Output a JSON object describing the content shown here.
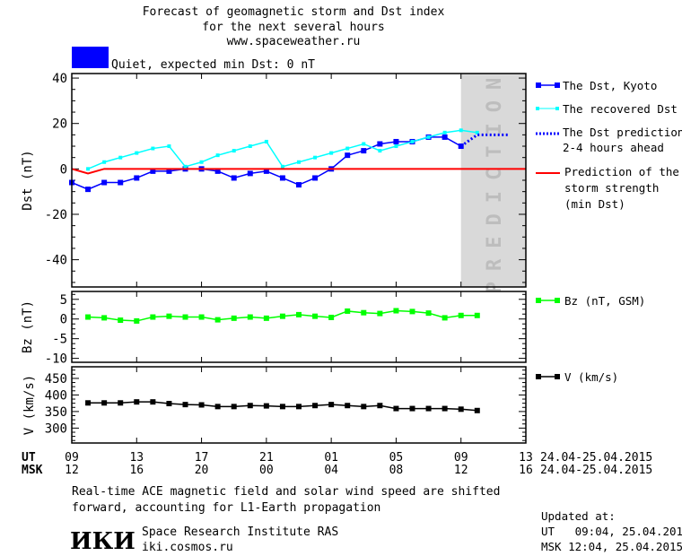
{
  "header": {
    "title_line1": "Forecast of geomagnetic storm and Dst index",
    "title_line2": "for the next several hours",
    "site": "www.spaceweather.ru",
    "status_text": "Quiet, expected min Dst: 0 nT",
    "status_color": "#0000ff"
  },
  "x_axis": {
    "xlim_ut": [
      "24.04 09:00",
      "25.04 13:00"
    ],
    "ut_label": "UT",
    "msk_label": "MSK",
    "ticks_ut_at": [
      "24.04 09:00",
      "24.04 13:00",
      "24.04 17:00",
      "24.04 21:00",
      "25.04 01:00",
      "25.04 05:00",
      "25.04 09:00",
      "25.04 13:00"
    ],
    "ut_ticks": [
      "09",
      "13",
      "17",
      "21",
      "01",
      "05",
      "09",
      "13"
    ],
    "msk_ticks": [
      "12",
      "16",
      "20",
      "00",
      "04",
      "08",
      "12",
      "16"
    ],
    "ut_range": "24.04-25.04.2015",
    "msk_range": "24.04-25.04.2015"
  },
  "chart_data": [
    {
      "type": "line",
      "ylabel": "Dst (nT)",
      "ylim": [
        -52,
        42
      ],
      "yticks": [
        -40,
        -20,
        0,
        20,
        40
      ],
      "prediction_zone": {
        "label": "PREDICTION",
        "from": "25.04 09:00",
        "to": "25.04 13:00",
        "color": "#d9d9d9"
      },
      "series": [
        {
          "name": "The Dst, Kyoto",
          "color": "#0000ff",
          "marker": "square",
          "points": [
            [
              "24.04 09:00",
              -6
            ],
            [
              "24.04 10:00",
              -9
            ],
            [
              "24.04 11:00",
              -6
            ],
            [
              "24.04 12:00",
              -6
            ],
            [
              "24.04 13:00",
              -4
            ],
            [
              "24.04 14:00",
              -1
            ],
            [
              "24.04 15:00",
              -1
            ],
            [
              "24.04 16:00",
              0
            ],
            [
              "24.04 17:00",
              0
            ],
            [
              "24.04 18:00",
              -1
            ],
            [
              "24.04 19:00",
              -4
            ],
            [
              "24.04 20:00",
              -2
            ],
            [
              "24.04 21:00",
              -1
            ],
            [
              "24.04 22:00",
              -4
            ],
            [
              "24.04 23:00",
              -7
            ],
            [
              "25.04 00:00",
              -4
            ],
            [
              "25.04 01:00",
              0
            ],
            [
              "25.04 02:00",
              6
            ],
            [
              "25.04 03:00",
              8
            ],
            [
              "25.04 04:00",
              11
            ],
            [
              "25.04 05:00",
              12
            ],
            [
              "25.04 06:00",
              12
            ],
            [
              "25.04 07:00",
              14
            ],
            [
              "25.04 08:00",
              14
            ],
            [
              "25.04 09:00",
              10
            ]
          ]
        },
        {
          "name": "The recovered Dst",
          "color": "#00ffff",
          "marker": "small-square",
          "points": [
            [
              "24.04 10:00",
              0
            ],
            [
              "24.04 11:00",
              3
            ],
            [
              "24.04 12:00",
              5
            ],
            [
              "24.04 13:00",
              7
            ],
            [
              "24.04 14:00",
              9
            ],
            [
              "24.04 15:00",
              10
            ],
            [
              "24.04 16:00",
              1
            ],
            [
              "24.04 17:00",
              3
            ],
            [
              "24.04 18:00",
              6
            ],
            [
              "24.04 19:00",
              8
            ],
            [
              "24.04 20:00",
              10
            ],
            [
              "24.04 21:00",
              12
            ],
            [
              "24.04 22:00",
              1
            ],
            [
              "24.04 23:00",
              3
            ],
            [
              "25.04 00:00",
              5
            ],
            [
              "25.04 01:00",
              7
            ],
            [
              "25.04 02:00",
              9
            ],
            [
              "25.04 03:00",
              11
            ],
            [
              "25.04 04:00",
              8
            ],
            [
              "25.04 05:00",
              10
            ],
            [
              "25.04 06:00",
              12
            ],
            [
              "25.04 07:00",
              14
            ],
            [
              "25.04 08:00",
              16
            ],
            [
              "25.04 09:00",
              17
            ],
            [
              "25.04 10:00",
              16
            ]
          ]
        },
        {
          "name": "The Dst prediction 2-4 hours ahead",
          "name_line1": "The Dst prediction",
          "name_line2": "2-4 hours ahead",
          "color": "#0000ff",
          "style": "dotted",
          "points": [
            [
              "25.04 09:00",
              10
            ],
            [
              "25.04 10:00",
              15
            ],
            [
              "25.04 12:00",
              15
            ]
          ]
        },
        {
          "name": "Prediction of the storm strength (min Dst)",
          "name_line1": "Prediction of the",
          "name_line2": "storm strength",
          "name_line3": "(min Dst)",
          "color": "#ff0000",
          "style": "solid",
          "points": [
            [
              "24.04 09:00",
              0
            ],
            [
              "24.04 10:00",
              -2
            ],
            [
              "24.04 11:00",
              0
            ],
            [
              "25.04 13:00",
              0
            ]
          ]
        }
      ]
    },
    {
      "type": "line",
      "ylabel": "Bz (nT)",
      "ylim": [
        -11,
        7
      ],
      "yticks": [
        -10,
        -5,
        0,
        5
      ],
      "series": [
        {
          "name": "Bz (nT, GSM)",
          "color": "#00ff00",
          "marker": "square",
          "points": [
            [
              "24.04 10:00",
              0.5
            ],
            [
              "24.04 11:00",
              0.3
            ],
            [
              "24.04 12:00",
              -0.3
            ],
            [
              "24.04 13:00",
              -0.5
            ],
            [
              "24.04 14:00",
              0.5
            ],
            [
              "24.04 15:00",
              0.7
            ],
            [
              "24.04 16:00",
              0.5
            ],
            [
              "24.04 17:00",
              0.5
            ],
            [
              "24.04 18:00",
              -0.2
            ],
            [
              "24.04 19:00",
              0.2
            ],
            [
              "24.04 20:00",
              0.5
            ],
            [
              "24.04 21:00",
              0.2
            ],
            [
              "24.04 22:00",
              0.7
            ],
            [
              "24.04 23:00",
              1.1
            ],
            [
              "25.04 00:00",
              0.7
            ],
            [
              "25.04 01:00",
              0.4
            ],
            [
              "25.04 02:00",
              2.0
            ],
            [
              "25.04 03:00",
              1.6
            ],
            [
              "25.04 04:00",
              1.4
            ],
            [
              "25.04 05:00",
              2.1
            ],
            [
              "25.04 06:00",
              1.9
            ],
            [
              "25.04 07:00",
              1.5
            ],
            [
              "25.04 08:00",
              0.3
            ],
            [
              "25.04 09:00",
              0.9
            ],
            [
              "25.04 10:00",
              0.9
            ]
          ]
        }
      ]
    },
    {
      "type": "line",
      "ylabel": "V (km/s)",
      "ylim": [
        255,
        485
      ],
      "yticks": [
        300,
        350,
        400,
        450
      ],
      "series": [
        {
          "name": "V (km/s)",
          "color": "#000000",
          "marker": "square",
          "points": [
            [
              "24.04 10:00",
              376
            ],
            [
              "24.04 11:00",
              376
            ],
            [
              "24.04 12:00",
              376
            ],
            [
              "24.04 13:00",
              379
            ],
            [
              "24.04 14:00",
              379
            ],
            [
              "24.04 15:00",
              374
            ],
            [
              "24.04 16:00",
              371
            ],
            [
              "24.04 17:00",
              370
            ],
            [
              "24.04 18:00",
              365
            ],
            [
              "24.04 19:00",
              365
            ],
            [
              "24.04 20:00",
              368
            ],
            [
              "24.04 21:00",
              367
            ],
            [
              "24.04 22:00",
              365
            ],
            [
              "24.04 23:00",
              365
            ],
            [
              "25.04 00:00",
              368
            ],
            [
              "25.04 01:00",
              371
            ],
            [
              "25.04 02:00",
              368
            ],
            [
              "25.04 03:00",
              365
            ],
            [
              "25.04 04:00",
              368
            ],
            [
              "25.04 05:00",
              359
            ],
            [
              "25.04 06:00",
              359
            ],
            [
              "25.04 07:00",
              359
            ],
            [
              "25.04 08:00",
              359
            ],
            [
              "25.04 09:00",
              357
            ],
            [
              "25.04 10:00",
              353
            ]
          ]
        }
      ]
    }
  ],
  "footer": {
    "note_line1": "Real-time ACE magnetic field and solar wind speed are shifted",
    "note_line2": "forward, accounting for L1-Earth propagation",
    "institute_logo": "ИКИ",
    "institute_name": "Space Research Institute RAS",
    "institute_site": "iki.cosmos.ru",
    "updated_label": "Updated at:",
    "updated_ut": "UT   09:04, 25.04.2015",
    "updated_msk": "MSK 12:04, 25.04.2015"
  }
}
